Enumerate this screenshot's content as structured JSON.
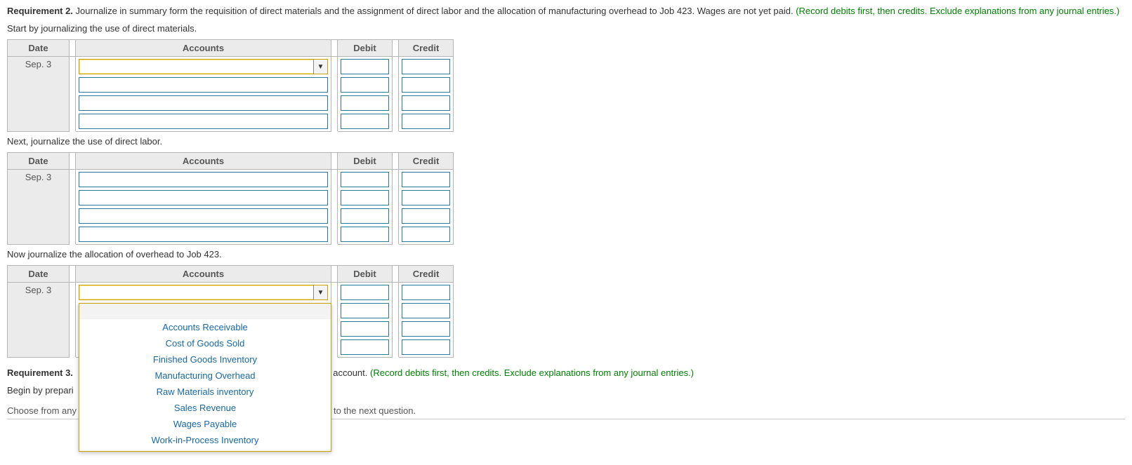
{
  "req2": {
    "label": "Requirement 2.",
    "text": "Journalize in summary form the requisition of direct materials and the assignment of direct labor and the allocation of manufacturing overhead to Job 423. Wages are not yet paid.",
    "green": "(Record debits first, then credits. Exclude explanations from any journal entries.)"
  },
  "instructions": {
    "materials": "Start by journalizing the use of direct materials.",
    "labor": "Next, journalize the use of direct labor.",
    "overhead": "Now journalize the allocation of overhead to Job 423."
  },
  "columns": {
    "date": "Date",
    "accounts": "Accounts",
    "debit": "Debit",
    "credit": "Credit"
  },
  "date_value": "Sep. 3",
  "dropdown_options": [
    "Accounts Receivable",
    "Cost of Goods Sold",
    "Finished Goods Inventory",
    "Manufacturing Overhead",
    "Raw Materials inventory",
    "Sales Revenue",
    "Wages Payable",
    "Work-in-Process Inventory"
  ],
  "req3": {
    "label": "Requirement 3.",
    "mid": "on account.",
    "green": "(Record debits first, then credits. Exclude explanations from any journal entries.)",
    "begin": "Begin by prepari"
  },
  "footer": {
    "left": "Choose from any",
    "right": "ie to the next question."
  }
}
